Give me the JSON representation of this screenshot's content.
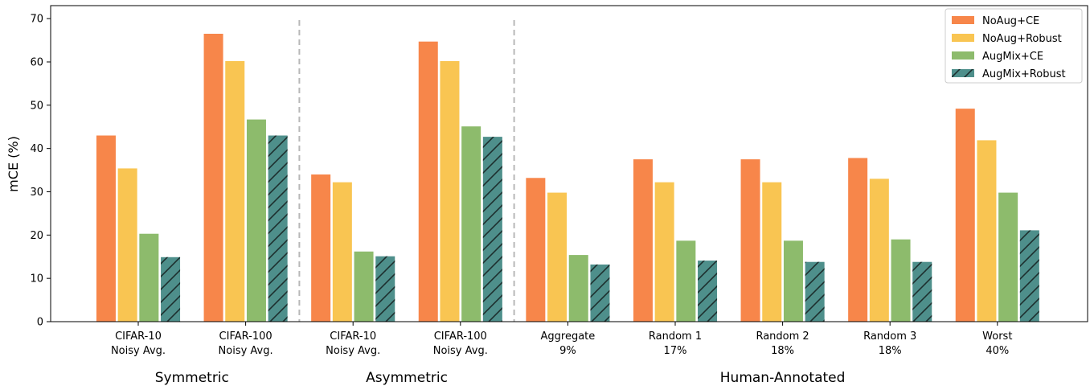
{
  "chart_data": {
    "type": "bar",
    "ylabel": "mCE (%)",
    "ylim": [
      0,
      73
    ],
    "yticks": [
      0,
      10,
      20,
      30,
      40,
      50,
      60,
      70
    ],
    "grid": false,
    "legend_position": "top-right",
    "categories": [
      {
        "line1": "CIFAR-10",
        "line2": "Noisy Avg."
      },
      {
        "line1": "CIFAR-100",
        "line2": "Noisy Avg."
      },
      {
        "line1": "CIFAR-10",
        "line2": "Noisy Avg."
      },
      {
        "line1": "CIFAR-100",
        "line2": "Noisy Avg."
      },
      {
        "line1": "Aggregate",
        "line2": "9%"
      },
      {
        "line1": "Random 1",
        "line2": "17%"
      },
      {
        "line1": "Random 2",
        "line2": "18%"
      },
      {
        "line1": "Random 3",
        "line2": "18%"
      },
      {
        "line1": "Worst",
        "line2": "40%"
      }
    ],
    "groups": [
      {
        "label": "Symmetric",
        "start": 0,
        "end": 1
      },
      {
        "label": "Asymmetric",
        "start": 2,
        "end": 3
      },
      {
        "label": "Human-Annotated",
        "start": 4,
        "end": 8
      }
    ],
    "series": [
      {
        "name": "NoAug+CE",
        "color": "#f7864a",
        "hatch": false,
        "values": [
          43.0,
          66.5,
          34.0,
          64.7,
          33.2,
          37.5,
          37.5,
          37.8,
          49.2
        ]
      },
      {
        "name": "NoAug+Robust",
        "color": "#f9c552",
        "hatch": false,
        "values": [
          35.4,
          60.2,
          32.2,
          60.2,
          29.8,
          32.2,
          32.2,
          33.0,
          41.9
        ]
      },
      {
        "name": "AugMix+CE",
        "color": "#8dbb6c",
        "hatch": false,
        "values": [
          20.3,
          46.7,
          16.2,
          45.1,
          15.4,
          18.7,
          18.7,
          19.0,
          29.8
        ]
      },
      {
        "name": "AugMix+Robust",
        "color": "#4e8f8b",
        "hatch": true,
        "values": [
          14.9,
          43.0,
          15.1,
          42.7,
          13.2,
          14.1,
          13.8,
          13.8,
          21.1
        ]
      }
    ]
  }
}
